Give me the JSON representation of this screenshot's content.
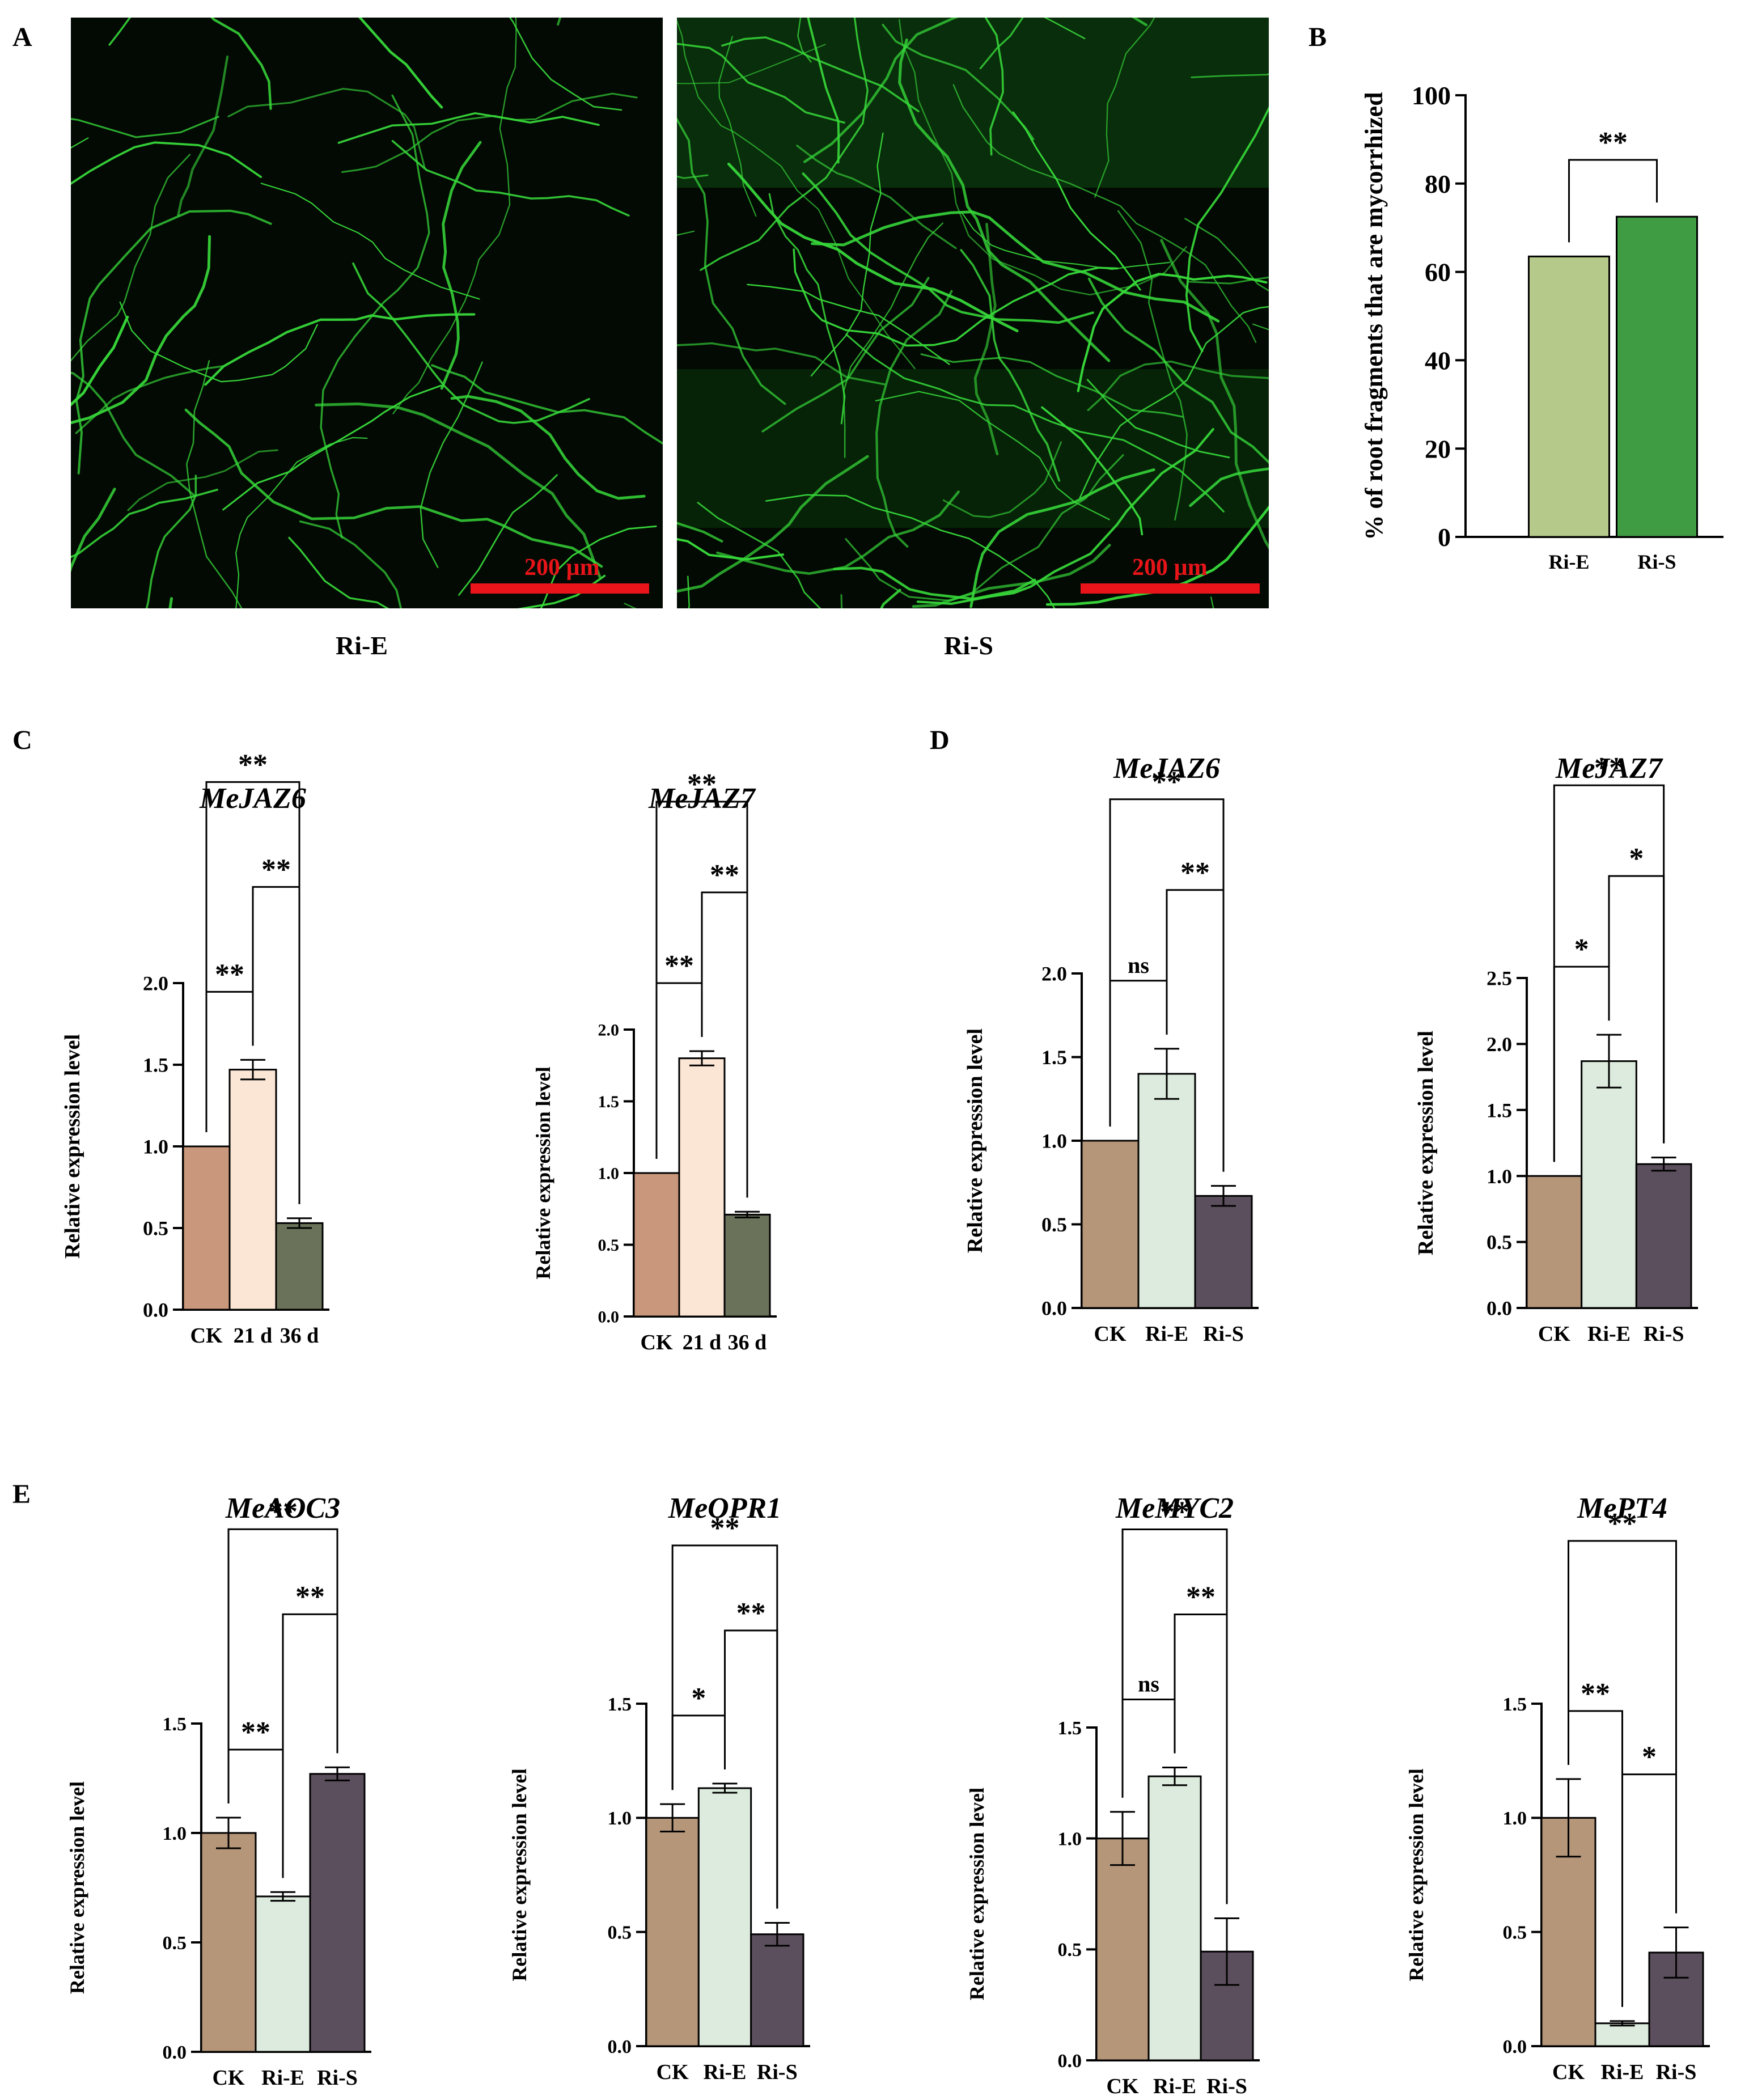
{
  "panels": {
    "A": "A",
    "B": "B",
    "C": "C",
    "D": "D",
    "E": "E"
  },
  "micrographs": [
    {
      "caption": "Ri-E",
      "scale_label": "200 µm"
    },
    {
      "caption": "Ri-S",
      "scale_label": "200 µm"
    }
  ],
  "colors": {
    "ck_c": "#c9977b",
    "d21_c": "#fbe6d6",
    "d36_c": "#6a7359",
    "ck": "#b59679",
    "rie": "#dcebdd",
    "ris": "#5c4f5d",
    "b_rie": "#b4c98a",
    "b_ris": "#3f9c43",
    "hyphae": "#37d83a"
  },
  "chart_data": [
    {
      "panel": "B",
      "type": "bar",
      "title": "",
      "ylabel": "% of root fragments that are mycorrhized",
      "categories": [
        "Ri-E",
        "Ri-S"
      ],
      "values": [
        63.5,
        72.5
      ],
      "errors": [
        0,
        0
      ],
      "ylim": [
        0,
        100
      ],
      "yticks": [
        "0",
        "20",
        "40",
        "60",
        "80",
        "100"
      ],
      "colors": [
        "b_rie",
        "b_ris"
      ],
      "significance": [
        {
          "from": 0,
          "to": 1,
          "label": "**"
        }
      ]
    },
    {
      "panel": "C",
      "type": "bar",
      "title": "MeJAZ6",
      "ylabel": "Relative expression level",
      "categories": [
        "CK",
        "21 d",
        "36 d"
      ],
      "values": [
        1.0,
        1.47,
        0.53
      ],
      "errors": [
        0,
        0.06,
        0.03
      ],
      "ylim": [
        0,
        2.0
      ],
      "yticks": [
        "0.0",
        "0.5",
        "1.0",
        "1.5",
        "2.0"
      ],
      "colors": [
        "ck_c",
        "d21_c",
        "d36_c"
      ],
      "significance": [
        {
          "from": 0,
          "to": 1,
          "label": "**"
        },
        {
          "from": 1,
          "to": 2,
          "label": "**"
        },
        {
          "from": 0,
          "to": 2,
          "label": "**"
        }
      ]
    },
    {
      "panel": "C",
      "type": "bar",
      "title": "MeJAZ7",
      "ylabel": "Relative expression level",
      "categories": [
        "CK",
        "21 d",
        "36 d"
      ],
      "values": [
        1.0,
        1.8,
        0.71
      ],
      "errors": [
        0,
        0.05,
        0.02
      ],
      "ylim": [
        0,
        2.0
      ],
      "yticks": [
        "0.0",
        "0.5",
        "1.0",
        "1.5",
        "2.0"
      ],
      "colors": [
        "ck_c",
        "d21_c",
        "d36_c"
      ],
      "significance": [
        {
          "from": 0,
          "to": 1,
          "label": "**"
        },
        {
          "from": 1,
          "to": 2,
          "label": "**"
        },
        {
          "from": 0,
          "to": 2,
          "label": "**"
        }
      ]
    },
    {
      "panel": "D",
      "type": "bar",
      "title": "MeJAZ6",
      "ylabel": "Relative expression level",
      "categories": [
        "CK",
        "Ri-E",
        "Ri-S"
      ],
      "values": [
        1.0,
        1.4,
        0.67
      ],
      "errors": [
        0,
        0.15,
        0.06
      ],
      "ylim": [
        0,
        2.0
      ],
      "yticks": [
        "0.0",
        "0.5",
        "1.0",
        "1.5",
        "2.0"
      ],
      "colors": [
        "ck",
        "rie",
        "ris"
      ],
      "significance": [
        {
          "from": 0,
          "to": 1,
          "label": "ns"
        },
        {
          "from": 1,
          "to": 2,
          "label": "**"
        },
        {
          "from": 0,
          "to": 2,
          "label": "**"
        }
      ]
    },
    {
      "panel": "D",
      "type": "bar",
      "title": "MeJAZ7",
      "ylabel": "Relative expression level",
      "categories": [
        "CK",
        "Ri-E",
        "Ri-S"
      ],
      "values": [
        1.0,
        1.87,
        1.09
      ],
      "errors": [
        0,
        0.2,
        0.05
      ],
      "ylim": [
        0,
        2.5
      ],
      "yticks": [
        "0.0",
        "0.5",
        "1.0",
        "1.5",
        "2.0",
        "2.5"
      ],
      "colors": [
        "ck",
        "rie",
        "ris"
      ],
      "significance": [
        {
          "from": 0,
          "to": 1,
          "label": "*"
        },
        {
          "from": 1,
          "to": 2,
          "label": "*"
        },
        {
          "from": 0,
          "to": 2,
          "label": "**"
        }
      ]
    },
    {
      "panel": "E",
      "type": "bar",
      "title": "MeAOC3",
      "ylabel": "Relative expression level",
      "categories": [
        "CK",
        "Ri-E",
        "Ri-S"
      ],
      "values": [
        1.0,
        0.71,
        1.27
      ],
      "errors": [
        0.07,
        0.02,
        0.03
      ],
      "ylim": [
        0,
        1.5
      ],
      "yticks": [
        "0.0",
        "0.5",
        "1.0",
        "1.5"
      ],
      "colors": [
        "ck",
        "rie",
        "ris"
      ],
      "significance": [
        {
          "from": 0,
          "to": 1,
          "label": "**"
        },
        {
          "from": 1,
          "to": 2,
          "label": "**"
        },
        {
          "from": 0,
          "to": 2,
          "label": "**"
        }
      ]
    },
    {
      "panel": "E",
      "type": "bar",
      "title": "MeOPR1",
      "ylabel": "Relative expression level",
      "categories": [
        "CK",
        "Ri-E",
        "Ri-S"
      ],
      "values": [
        1.0,
        1.13,
        0.49
      ],
      "errors": [
        0.06,
        0.02,
        0.05
      ],
      "ylim": [
        0,
        1.5
      ],
      "yticks": [
        "0.0",
        "0.5",
        "1.0",
        "1.5"
      ],
      "colors": [
        "ck",
        "rie",
        "ris"
      ],
      "significance": [
        {
          "from": 0,
          "to": 1,
          "label": "*"
        },
        {
          "from": 1,
          "to": 2,
          "label": "**"
        },
        {
          "from": 0,
          "to": 2,
          "label": "**"
        }
      ]
    },
    {
      "panel": "E",
      "type": "bar",
      "title": "MeMYC2",
      "ylabel": "Relative expression level",
      "categories": [
        "CK",
        "Ri-E",
        "Ri-S"
      ],
      "values": [
        1.0,
        1.28,
        0.49
      ],
      "errors": [
        0.12,
        0.04,
        0.15
      ],
      "ylim": [
        0,
        1.5
      ],
      "yticks": [
        "0.0",
        "0.5",
        "1.0",
        "1.5"
      ],
      "colors": [
        "ck",
        "rie",
        "ris"
      ],
      "significance": [
        {
          "from": 0,
          "to": 1,
          "label": "ns"
        },
        {
          "from": 1,
          "to": 2,
          "label": "**"
        },
        {
          "from": 0,
          "to": 2,
          "label": "**"
        }
      ]
    },
    {
      "panel": "E",
      "type": "bar",
      "title": "MePT4",
      "ylabel": "Relative expression level",
      "categories": [
        "CK",
        "Ri-E",
        "Ri-S"
      ],
      "values": [
        1.0,
        0.1,
        0.41
      ],
      "errors": [
        0.17,
        0.01,
        0.11
      ],
      "ylim": [
        0,
        1.5
      ],
      "yticks": [
        "0.0",
        "0.5",
        "1.0",
        "1.5"
      ],
      "colors": [
        "ck",
        "rie",
        "ris"
      ],
      "significance": [
        {
          "from": 0,
          "to": 1,
          "label": "**"
        },
        {
          "from": 1,
          "to": 2,
          "label": "*"
        },
        {
          "from": 0,
          "to": 2,
          "label": "**"
        }
      ]
    }
  ]
}
